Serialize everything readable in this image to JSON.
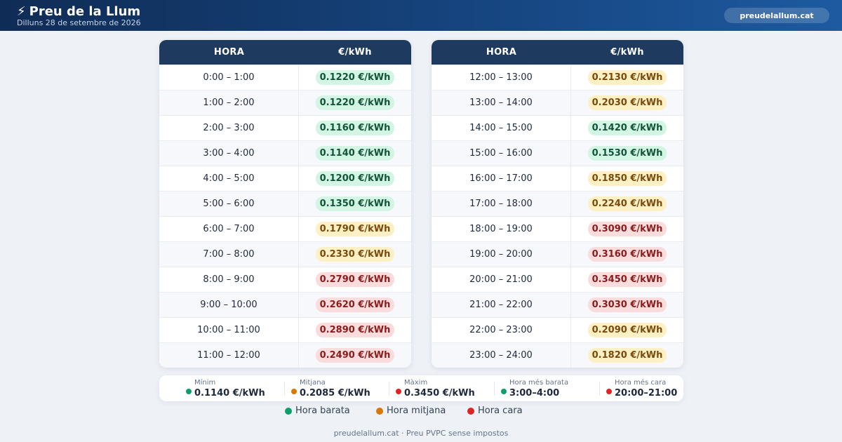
{
  "header": {
    "title": "Preu de la Llum",
    "title_icon": "lightning-bolt-icon",
    "date": "Dilluns 28 de setembre de 2026",
    "site_label": "preudelallum.cat"
  },
  "table": {
    "col_hour": "HORA",
    "col_price": "€/kWh"
  },
  "colors": {
    "cheap": "#0f9d6b",
    "mid": "#d97706",
    "high": "#dc2626",
    "header_bg": "#1e3a5f"
  },
  "rows_left": [
    {
      "hour": "0:00 – 1:00",
      "price": "0.1220 €/kWh",
      "level": "cheap"
    },
    {
      "hour": "1:00 – 2:00",
      "price": "0.1220 €/kWh",
      "level": "cheap"
    },
    {
      "hour": "2:00 – 3:00",
      "price": "0.1160 €/kWh",
      "level": "cheap"
    },
    {
      "hour": "3:00 – 4:00",
      "price": "0.1140 €/kWh",
      "level": "cheap"
    },
    {
      "hour": "4:00 – 5:00",
      "price": "0.1200 €/kWh",
      "level": "cheap"
    },
    {
      "hour": "5:00 – 6:00",
      "price": "0.1350 €/kWh",
      "level": "cheap"
    },
    {
      "hour": "6:00 – 7:00",
      "price": "0.1790 €/kWh",
      "level": "mid"
    },
    {
      "hour": "7:00 – 8:00",
      "price": "0.2330 €/kWh",
      "level": "mid"
    },
    {
      "hour": "8:00 – 9:00",
      "price": "0.2790 €/kWh",
      "level": "high"
    },
    {
      "hour": "9:00 – 10:00",
      "price": "0.2620 €/kWh",
      "level": "high"
    },
    {
      "hour": "10:00 – 11:00",
      "price": "0.2890 €/kWh",
      "level": "high"
    },
    {
      "hour": "11:00 – 12:00",
      "price": "0.2490 €/kWh",
      "level": "high"
    }
  ],
  "rows_right": [
    {
      "hour": "12:00 – 13:00",
      "price": "0.2130 €/kWh",
      "level": "mid"
    },
    {
      "hour": "13:00 – 14:00",
      "price": "0.2030 €/kWh",
      "level": "mid"
    },
    {
      "hour": "14:00 – 15:00",
      "price": "0.1420 €/kWh",
      "level": "cheap"
    },
    {
      "hour": "15:00 – 16:00",
      "price": "0.1530 €/kWh",
      "level": "cheap"
    },
    {
      "hour": "16:00 – 17:00",
      "price": "0.1850 €/kWh",
      "level": "mid"
    },
    {
      "hour": "17:00 – 18:00",
      "price": "0.2240 €/kWh",
      "level": "mid"
    },
    {
      "hour": "18:00 – 19:00",
      "price": "0.3090 €/kWh",
      "level": "high"
    },
    {
      "hour": "19:00 – 20:00",
      "price": "0.3160 €/kWh",
      "level": "high"
    },
    {
      "hour": "20:00 – 21:00",
      "price": "0.3450 €/kWh",
      "level": "high"
    },
    {
      "hour": "21:00 – 22:00",
      "price": "0.3030 €/kWh",
      "level": "high"
    },
    {
      "hour": "22:00 – 23:00",
      "price": "0.2090 €/kWh",
      "level": "mid"
    },
    {
      "hour": "23:00 – 24:00",
      "price": "0.1820 €/kWh",
      "level": "mid"
    }
  ],
  "stats": [
    {
      "label": "Mínim",
      "value": "0.1140 €/kWh",
      "level": "cheap"
    },
    {
      "label": "Mitjana",
      "value": "0.2085 €/kWh",
      "level": "mid"
    },
    {
      "label": "Màxim",
      "value": "0.3450 €/kWh",
      "level": "high"
    },
    {
      "label": "Hora més barata",
      "value": "3:00–4:00",
      "level": "cheap"
    },
    {
      "label": "Hora més cara",
      "value": "20:00–21:00",
      "level": "high"
    }
  ],
  "legend": [
    {
      "label": "Hora barata",
      "level": "cheap"
    },
    {
      "label": "Hora mitjana",
      "level": "mid"
    },
    {
      "label": "Hora cara",
      "level": "high"
    }
  ],
  "footer": "preudelallum.cat · Preu PVPC sense impostos"
}
